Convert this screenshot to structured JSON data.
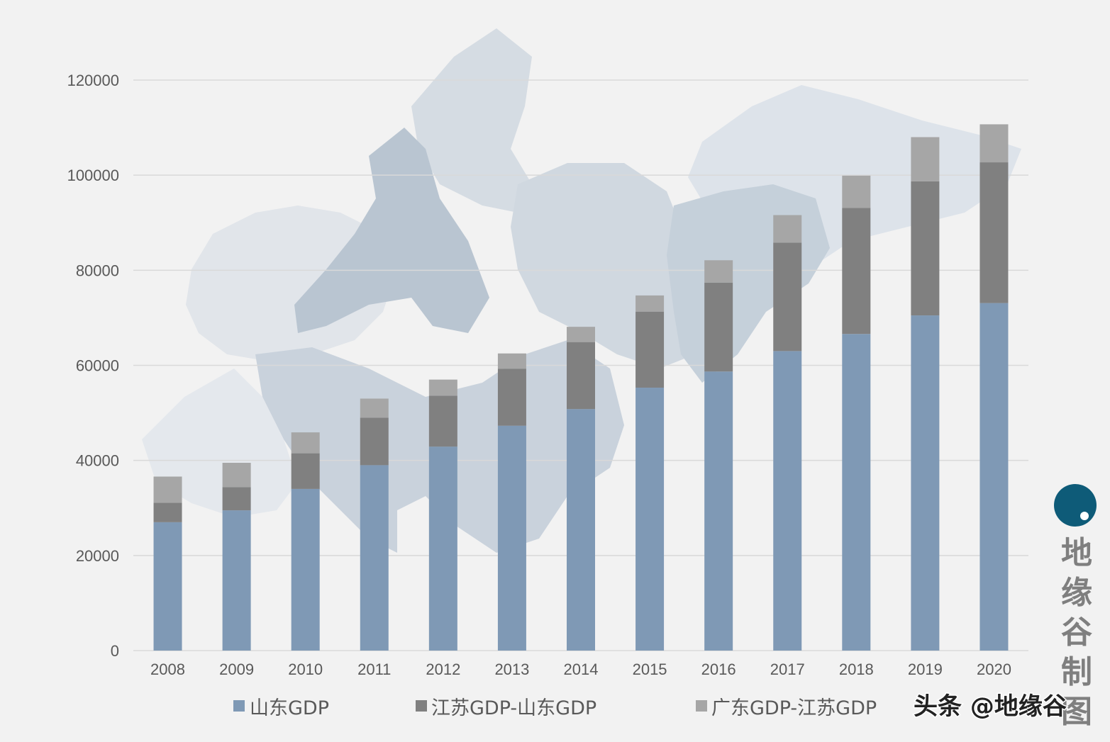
{
  "chart_data": {
    "type": "bar",
    "stacked": true,
    "categories": [
      "2008",
      "2009",
      "2010",
      "2011",
      "2012",
      "2013",
      "2014",
      "2015",
      "2016",
      "2017",
      "2018",
      "2019",
      "2020"
    ],
    "series": [
      {
        "name": "山东GDP",
        "color": "#7f99b5",
        "values": [
          27000,
          29500,
          34000,
          39000,
          42900,
          47300,
          50800,
          55300,
          58700,
          63000,
          66600,
          70500,
          73100
        ]
      },
      {
        "name": "江苏GDP-山东GDP",
        "color": "#808080",
        "values": [
          4100,
          4900,
          7500,
          10000,
          10700,
          12000,
          14100,
          16000,
          18700,
          22800,
          26500,
          28200,
          29600
        ]
      },
      {
        "name": "广东GDP-江苏GDP",
        "color": "#a6a6a6",
        "values": [
          5500,
          5100,
          4400,
          4000,
          3400,
          3200,
          3200,
          3400,
          4700,
          5800,
          6800,
          9300,
          8000
        ]
      }
    ],
    "yticks": [
      "0",
      "20000",
      "40000",
      "60000",
      "80000",
      "100000",
      "120000"
    ],
    "ylim": [
      0,
      120000
    ],
    "grid": true,
    "legend_position": "bottom"
  },
  "branding": {
    "logo_icon": "circle-dot-logo",
    "logo_color": "#0e5b78",
    "vertical_text": "地缘谷制图",
    "watermark": "头条 @地缘谷"
  }
}
